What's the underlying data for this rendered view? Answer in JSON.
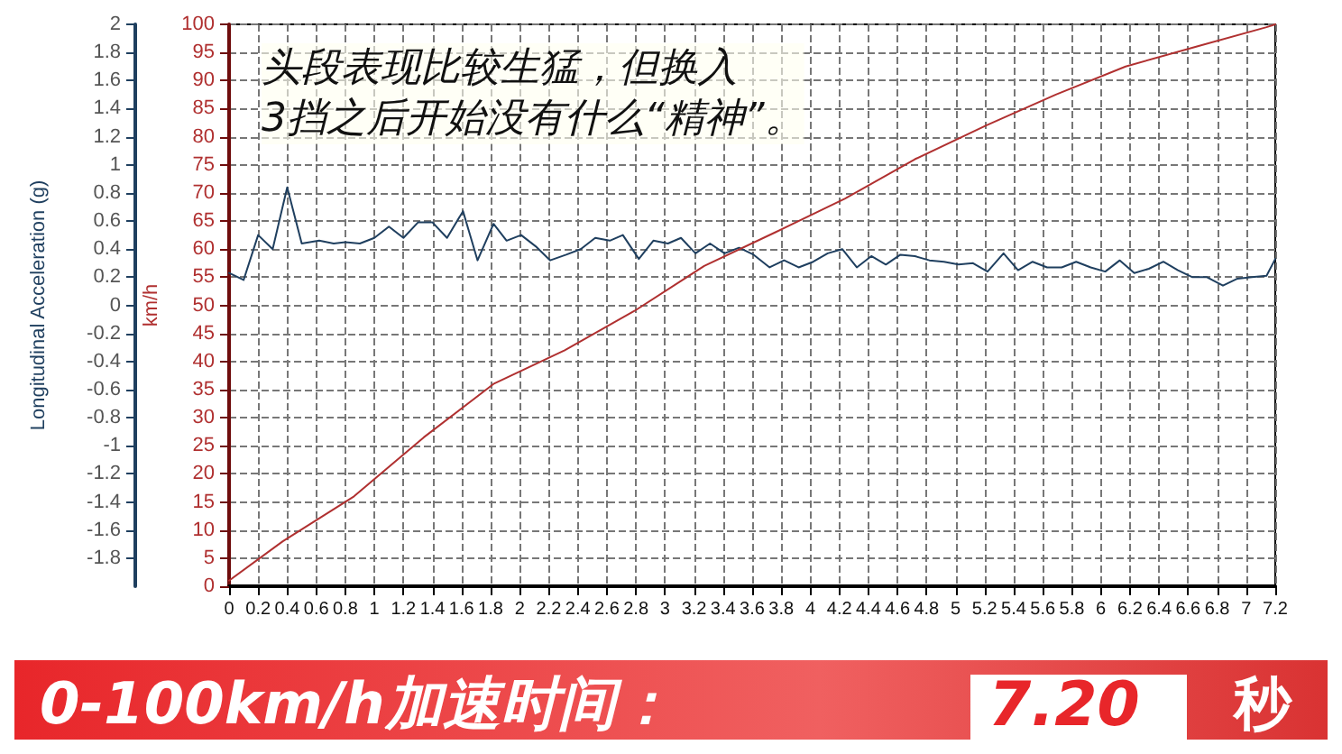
{
  "chart_data": {
    "type": "line",
    "xlabel": null,
    "ylabel": "Longitudinal Acceleration (g)",
    "y2label": "km/h",
    "annotations": [
      "头段表现比较生猛，但换入\n3挡之后开始没有什么“精神”。",
      "0-100km/h加速时间：",
      "7.20",
      "秒"
    ],
    "series": [
      {
        "color": "#1f3f5f",
        "axis": "y",
        "x": [
          0,
          0.1,
          0.2,
          0.3,
          0.4,
          0.5,
          0.62,
          0.72,
          0.8,
          0.9,
          1.0,
          1.1,
          1.2,
          1.3,
          1.4,
          1.5,
          1.61,
          1.71,
          1.82,
          1.91,
          2.01,
          2.11,
          2.21,
          2.32,
          2.42,
          2.52,
          2.62,
          2.71,
          2.82,
          2.92,
          3.02,
          3.11,
          3.21,
          3.31,
          3.41,
          3.51,
          3.61,
          3.72,
          3.82,
          3.92,
          4.02,
          4.12,
          4.22,
          4.32,
          4.42,
          4.52,
          4.62,
          4.72,
          4.82,
          4.92,
          5.02,
          5.12,
          5.22,
          5.33,
          5.43,
          5.53,
          5.63,
          5.73,
          5.83,
          5.93,
          6.03,
          6.13,
          6.23,
          6.33,
          6.43,
          6.53,
          6.63,
          6.73,
          6.84,
          6.94,
          7.04,
          7.14,
          7.2
        ],
        "values": [
          0.23,
          0.18,
          0.5,
          0.4,
          0.84,
          0.44,
          0.46,
          0.44,
          0.45,
          0.44,
          0.48,
          0.56,
          0.48,
          0.59,
          0.59,
          0.48,
          0.67,
          0.32,
          0.58,
          0.46,
          0.5,
          0.42,
          0.32,
          0.36,
          0.4,
          0.48,
          0.46,
          0.5,
          0.33,
          0.46,
          0.44,
          0.48,
          0.37,
          0.44,
          0.37,
          0.41,
          0.36,
          0.27,
          0.32,
          0.27,
          0.31,
          0.37,
          0.4,
          0.27,
          0.35,
          0.29,
          0.36,
          0.35,
          0.32,
          0.31,
          0.29,
          0.3,
          0.24,
          0.37,
          0.25,
          0.31,
          0.27,
          0.27,
          0.31,
          0.27,
          0.24,
          0.32,
          0.23,
          0.26,
          0.31,
          0.25,
          0.2,
          0.2,
          0.14,
          0.19,
          0.2,
          0.21,
          0.33
        ]
      },
      {
        "color": "#b03030",
        "axis": "y2",
        "x": [
          0,
          0.37,
          0.86,
          1.34,
          1.82,
          2.31,
          2.79,
          3.27,
          3.76,
          4.24,
          4.72,
          5.21,
          5.69,
          6.17,
          6.65,
          7.14,
          7.2
        ],
        "values": [
          1,
          8,
          16,
          26.5,
          36,
          42,
          49,
          57,
          63,
          69,
          76,
          82,
          87.5,
          92.5,
          96,
          99.5,
          100
        ]
      }
    ],
    "xlim": [
      0,
      7.2
    ],
    "xticks": [
      0,
      0.2,
      0.4,
      0.6,
      0.8,
      1,
      1.2,
      1.4,
      1.6,
      1.8,
      2,
      2.2,
      2.4,
      2.6,
      2.8,
      3,
      3.2,
      3.4,
      3.6,
      3.8,
      4,
      4.2,
      4.4,
      4.6,
      4.8,
      5,
      5.2,
      5.4,
      5.6,
      5.8,
      6,
      6.2,
      6.4,
      6.6,
      6.8,
      7,
      7.2
    ],
    "ylim": [
      -2,
      2
    ],
    "yticks": [
      -1.8,
      -1.6,
      -1.4,
      -1.2,
      -1,
      -0.8,
      -0.6,
      -0.4,
      -0.2,
      0,
      0.2,
      0.4,
      0.6,
      0.8,
      1,
      1.2,
      1.4,
      1.6,
      1.8,
      2
    ],
    "y2lim": [
      0,
      100
    ],
    "y2ticks": [
      0,
      5,
      10,
      15,
      20,
      25,
      30,
      35,
      40,
      45,
      50,
      55,
      60,
      65,
      70,
      75,
      80,
      85,
      90,
      95,
      100
    ],
    "grid": true,
    "line_style": "solid",
    "marker": "none"
  }
}
